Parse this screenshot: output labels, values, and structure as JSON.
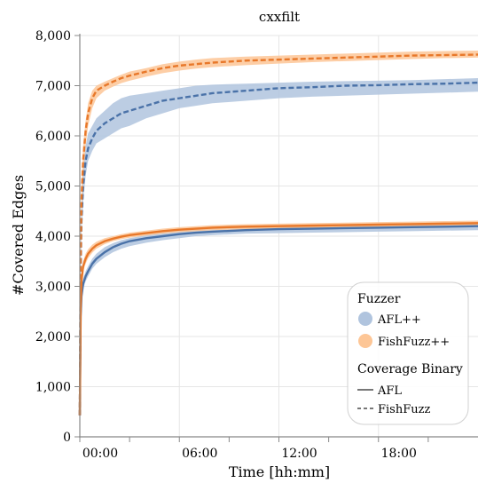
{
  "chart_data": {
    "type": "line",
    "title": "cxxfilt",
    "xlabel": "Time [hh:mm]",
    "ylabel": "#Covered Edges",
    "x_unit": "hours",
    "xlim": [
      0,
      24
    ],
    "ylim": [
      0,
      8000
    ],
    "x_ticks": [
      {
        "value": 0,
        "label": "00:00"
      },
      {
        "value": 6,
        "label": "06:00"
      },
      {
        "value": 12,
        "label": "12:00"
      },
      {
        "value": 18,
        "label": "18:00"
      }
    ],
    "y_ticks": [
      {
        "value": 0,
        "label": "0"
      },
      {
        "value": 1000,
        "label": "1,000"
      },
      {
        "value": 2000,
        "label": "2,000"
      },
      {
        "value": 3000,
        "label": "3,000"
      },
      {
        "value": 4000,
        "label": "4,000"
      },
      {
        "value": 5000,
        "label": "5,000"
      },
      {
        "value": 6000,
        "label": "6,000"
      },
      {
        "value": 7000,
        "label": "7,000"
      },
      {
        "value": 8000,
        "label": "8,000"
      }
    ],
    "grid": true,
    "legend_position": "bottom-right",
    "legend": {
      "fuzzer_title": "Fuzzer",
      "fuzzers": [
        {
          "name": "AFL++",
          "color": "#b0c4de"
        },
        {
          "name": "FishFuzz++",
          "color": "#fdc696"
        }
      ],
      "binary_title": "Coverage Binary",
      "binaries": [
        {
          "name": "AFL",
          "dash": "solid"
        },
        {
          "name": "FishFuzz",
          "dash": "dashed"
        }
      ]
    },
    "series": [
      {
        "name": "AFL++ / FishFuzz",
        "fuzzer": "AFL++",
        "binary": "FishFuzz",
        "color": "#4a72a8",
        "band_color": "#b0c4de",
        "dash": "dashed",
        "x": [
          0,
          0.05,
          0.1,
          0.2,
          0.35,
          0.5,
          0.75,
          1,
          1.5,
          2,
          2.5,
          3,
          4,
          5,
          6,
          7,
          8,
          10,
          12,
          14,
          16,
          18,
          20,
          22,
          24
        ],
        "mean": [
          430,
          3300,
          4300,
          5000,
          5500,
          5750,
          5950,
          6100,
          6250,
          6350,
          6450,
          6500,
          6600,
          6700,
          6750,
          6800,
          6850,
          6900,
          6950,
          6970,
          7000,
          7010,
          7030,
          7040,
          7060
        ],
        "lower": [
          400,
          3000,
          4000,
          4700,
          5200,
          5500,
          5700,
          5850,
          5950,
          6050,
          6150,
          6200,
          6350,
          6450,
          6550,
          6600,
          6650,
          6700,
          6750,
          6780,
          6800,
          6820,
          6840,
          6860,
          6880
        ],
        "upper": [
          460,
          3600,
          4600,
          5300,
          5800,
          6050,
          6200,
          6350,
          6500,
          6650,
          6750,
          6800,
          6850,
          6900,
          6950,
          7000,
          7020,
          7040,
          7060,
          7080,
          7090,
          7100,
          7110,
          7130,
          7150
        ]
      },
      {
        "name": "FishFuzz++ / FishFuzz",
        "fuzzer": "FishFuzz++",
        "binary": "FishFuzz",
        "color": "#e8782a",
        "band_color": "#fdc696",
        "dash": "dashed",
        "x": [
          0,
          0.05,
          0.1,
          0.2,
          0.35,
          0.5,
          0.75,
          1,
          1.5,
          2,
          2.5,
          3,
          4,
          5,
          6,
          7,
          8,
          10,
          12,
          14,
          16,
          18,
          20,
          22,
          24
        ],
        "mean": [
          430,
          3500,
          4700,
          5500,
          6100,
          6450,
          6750,
          6900,
          7000,
          7080,
          7150,
          7200,
          7280,
          7350,
          7400,
          7430,
          7460,
          7500,
          7520,
          7540,
          7560,
          7580,
          7600,
          7610,
          7620
        ],
        "lower": [
          400,
          3200,
          4400,
          5200,
          5800,
          6200,
          6550,
          6750,
          6900,
          6980,
          7050,
          7100,
          7180,
          7250,
          7300,
          7340,
          7370,
          7410,
          7440,
          7470,
          7490,
          7510,
          7530,
          7550,
          7560
        ],
        "upper": [
          460,
          3800,
          5000,
          5800,
          6300,
          6650,
          6900,
          7000,
          7080,
          7150,
          7220,
          7280,
          7350,
          7430,
          7480,
          7520,
          7550,
          7580,
          7600,
          7620,
          7640,
          7660,
          7680,
          7690,
          7700
        ]
      },
      {
        "name": "AFL++ / AFL",
        "fuzzer": "AFL++",
        "binary": "AFL",
        "color": "#4a72a8",
        "band_color": "#b0c4de",
        "dash": "solid",
        "x": [
          0,
          0.05,
          0.1,
          0.2,
          0.35,
          0.5,
          0.75,
          1,
          1.5,
          2,
          2.5,
          3,
          4,
          5,
          6,
          7,
          8,
          10,
          12,
          14,
          16,
          18,
          20,
          22,
          24
        ],
        "mean": [
          430,
          2400,
          2800,
          3050,
          3200,
          3300,
          3450,
          3550,
          3680,
          3780,
          3850,
          3900,
          3960,
          4000,
          4040,
          4070,
          4090,
          4120,
          4140,
          4150,
          4160,
          4170,
          4180,
          4190,
          4200
        ],
        "lower": [
          400,
          2300,
          2700,
          2950,
          3100,
          3200,
          3350,
          3450,
          3580,
          3680,
          3750,
          3800,
          3870,
          3920,
          3960,
          4000,
          4020,
          4050,
          4060,
          4070,
          4080,
          4090,
          4100,
          4110,
          4120
        ],
        "upper": [
          460,
          2500,
          2900,
          3150,
          3300,
          3400,
          3550,
          3650,
          3780,
          3860,
          3920,
          3960,
          4020,
          4070,
          4100,
          4130,
          4150,
          4180,
          4200,
          4210,
          4220,
          4230,
          4240,
          4250,
          4260
        ]
      },
      {
        "name": "FishFuzz++ / AFL",
        "fuzzer": "FishFuzz++",
        "binary": "AFL",
        "color": "#e8782a",
        "band_color": "#fdc696",
        "dash": "solid",
        "x": [
          0,
          0.05,
          0.1,
          0.2,
          0.35,
          0.5,
          0.75,
          1,
          1.5,
          2,
          2.5,
          3,
          4,
          5,
          6,
          7,
          8,
          10,
          12,
          14,
          16,
          18,
          20,
          22,
          24
        ],
        "mean": [
          430,
          2600,
          3100,
          3400,
          3550,
          3650,
          3750,
          3820,
          3900,
          3950,
          3990,
          4020,
          4060,
          4100,
          4130,
          4150,
          4170,
          4190,
          4200,
          4210,
          4220,
          4230,
          4240,
          4250,
          4260
        ],
        "lower": [
          400,
          2500,
          3000,
          3300,
          3450,
          3560,
          3670,
          3750,
          3840,
          3900,
          3940,
          3970,
          4010,
          4050,
          4080,
          4100,
          4120,
          4140,
          4150,
          4160,
          4170,
          4180,
          4190,
          4200,
          4210
        ],
        "upper": [
          460,
          2700,
          3200,
          3500,
          3650,
          3740,
          3830,
          3890,
          3960,
          4000,
          4040,
          4070,
          4110,
          4150,
          4180,
          4200,
          4220,
          4240,
          4250,
          4260,
          4270,
          4280,
          4290,
          4300,
          4310
        ]
      }
    ]
  }
}
